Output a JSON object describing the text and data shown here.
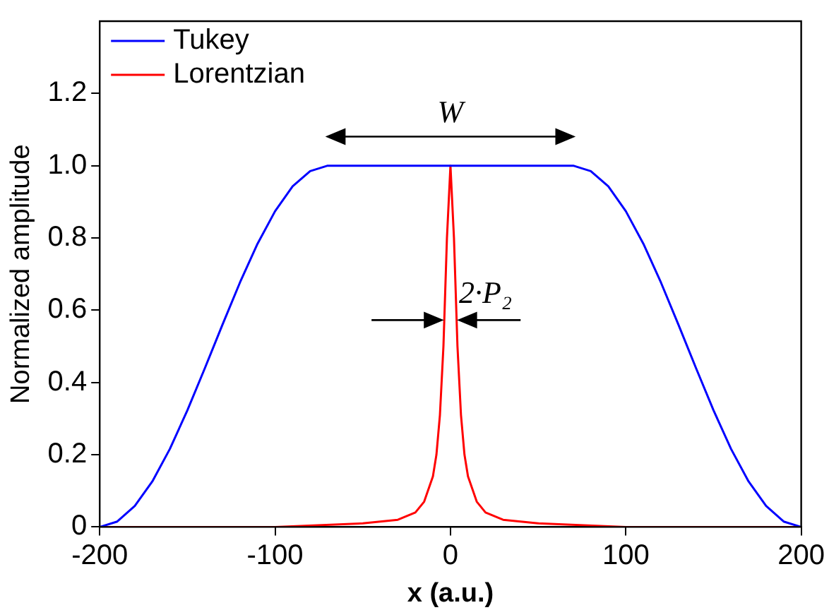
{
  "chart_data": {
    "type": "line",
    "xlabel": "x (a.u.)",
    "ylabel": "Normalized amplitude",
    "xlim": [
      -200,
      200
    ],
    "xticks": [
      -200,
      -100,
      0,
      100,
      200
    ],
    "ylim": [
      0,
      1.4
    ],
    "yticks": [
      0,
      0.2,
      0.4,
      0.6,
      0.8,
      {
        "value": 1,
        "label": "1.0"
      },
      1.2
    ],
    "grid": false,
    "legend": "top left",
    "marker": "none",
    "line_style": "solid",
    "annotations": [
      "W",
      "2·P₂"
    ],
    "series": [
      {
        "name": "Tukey",
        "color": "#0000ff",
        "x": [
          -200,
          -190,
          -180,
          -170,
          -160,
          -150,
          -140,
          -130,
          -120,
          -110,
          -100,
          -90,
          -80,
          -70,
          0,
          70,
          80,
          90,
          100,
          110,
          120,
          130,
          140,
          150,
          160,
          170,
          180,
          190,
          200
        ],
        "values": [
          0,
          0.015,
          0.058,
          0.126,
          0.216,
          0.323,
          0.44,
          0.56,
          0.677,
          0.784,
          0.874,
          0.943,
          0.985,
          1,
          1,
          1,
          0.985,
          0.943,
          0.874,
          0.784,
          0.677,
          0.56,
          0.44,
          0.323,
          0.216,
          0.126,
          0.058,
          0.015,
          0
        ]
      },
      {
        "name": "Lorentzian",
        "color": "#ff0000",
        "x": [
          -200,
          -100,
          -50,
          -30,
          -20,
          -15,
          -10,
          -8,
          -6,
          -4,
          -2,
          0,
          2,
          4,
          6,
          8,
          10,
          15,
          20,
          30,
          50,
          100,
          200
        ],
        "values": [
          0,
          0,
          0.01,
          0.02,
          0.04,
          0.07,
          0.14,
          0.2,
          0.31,
          0.5,
          0.8,
          1,
          0.8,
          0.5,
          0.31,
          0.2,
          0.14,
          0.07,
          0.04,
          0.02,
          0.01,
          0,
          0
        ]
      }
    ]
  }
}
